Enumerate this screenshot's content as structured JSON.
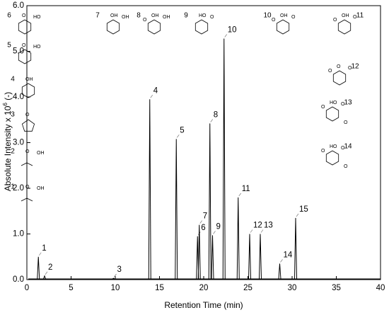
{
  "chart_data": {
    "type": "chromatogram",
    "xlabel": "Retention Time (min)",
    "ylabel": [
      "Absolute Intensity x 10",
      "6",
      " (-)"
    ],
    "xlim": [
      0,
      40
    ],
    "xticks": [
      0,
      5,
      10,
      15,
      20,
      25,
      30,
      35,
      40
    ],
    "ylim": [
      0,
      6
    ],
    "yticks": [
      {
        "value": 0,
        "label": "0.0"
      },
      {
        "value": 1,
        "label": "1.0"
      },
      {
        "value": 2,
        "label": "2.0"
      },
      {
        "value": 3,
        "label": "3.0"
      },
      {
        "value": 4,
        "label": "4.0"
      },
      {
        "value": 5,
        "label": "5.0"
      },
      {
        "value": 6,
        "label": "6.0"
      }
    ],
    "color": "#000000",
    "peaks": [
      {
        "label": "1",
        "x": 1.3,
        "height": 0.5
      },
      {
        "label": "2",
        "x": 2.0,
        "height": 0.08
      },
      {
        "label": "3",
        "x": 9.8,
        "height": 0.03
      },
      {
        "label": "4",
        "x": 13.9,
        "height": 3.95
      },
      {
        "label": "5",
        "x": 16.9,
        "height": 3.08
      },
      {
        "label": "6",
        "x": 19.3,
        "height": 0.95
      },
      {
        "label": "7",
        "x": 19.5,
        "height": 1.2
      },
      {
        "label": "8",
        "x": 20.7,
        "height": 3.42
      },
      {
        "label": "9",
        "x": 21.0,
        "height": 0.97
      },
      {
        "label": "10",
        "x": 22.3,
        "height": 5.28
      },
      {
        "label": "11",
        "x": 23.9,
        "height": 1.8
      },
      {
        "label": "12",
        "x": 25.2,
        "height": 1.0
      },
      {
        "label": "13",
        "x": 26.4,
        "height": 1.0
      },
      {
        "label": "14",
        "x": 28.6,
        "height": 0.35
      },
      {
        "label": "15",
        "x": 30.4,
        "height": 1.35
      }
    ],
    "structures": [
      {
        "id": "1",
        "atoms": [
          "O",
          "OH"
        ]
      },
      {
        "id": "2",
        "atoms": [
          "O",
          "OH"
        ]
      },
      {
        "id": "3",
        "atoms": [
          "O"
        ]
      },
      {
        "id": "4",
        "atoms": [
          "OH"
        ]
      },
      {
        "id": "5",
        "atoms": [
          "O",
          "HO"
        ]
      },
      {
        "id": "6",
        "atoms": [
          "O",
          "HO"
        ]
      },
      {
        "id": "7",
        "atoms": [
          "OH",
          "OH"
        ]
      },
      {
        "id": "8",
        "atoms": [
          "OH",
          "OH",
          "O"
        ]
      },
      {
        "id": "9",
        "atoms": [
          "HO",
          "O"
        ]
      },
      {
        "id": "10",
        "atoms": [
          "OH",
          "O",
          "O"
        ]
      },
      {
        "id": "11",
        "atoms": [
          "OH",
          "O",
          "O"
        ]
      },
      {
        "id": "12",
        "atoms": [
          "O",
          "O",
          "O"
        ]
      },
      {
        "id": "13",
        "atoms": [
          "HO",
          "O",
          "O",
          "O"
        ]
      },
      {
        "id": "14",
        "atoms": [
          "HO",
          "O",
          "O",
          "O"
        ]
      }
    ]
  }
}
